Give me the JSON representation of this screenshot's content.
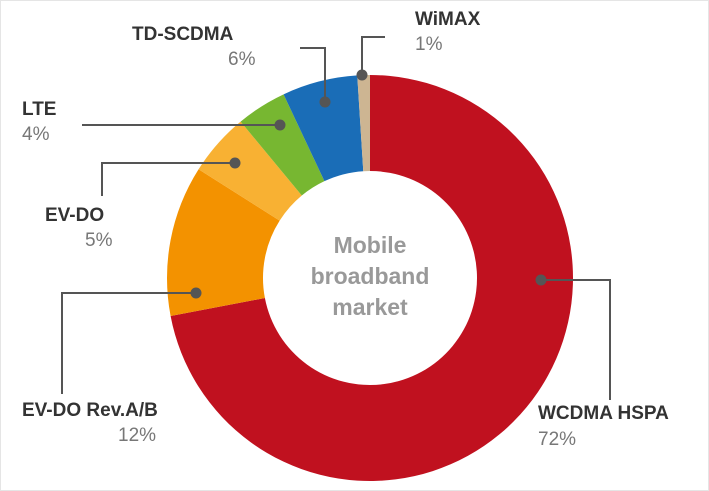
{
  "chart_data": {
    "type": "donut",
    "center_label": "Mobile broadband market",
    "categories": [
      "WCDMA HSPA",
      "EV-DO Rev.A/B",
      "EV-DO",
      "LTE",
      "TD-SCDMA",
      "WiMAX"
    ],
    "values": [
      72,
      12,
      5,
      4,
      6,
      1
    ],
    "value_labels": [
      "72%",
      "12%",
      "5%",
      "4%",
      "6%",
      "1%"
    ],
    "colors": [
      "#c0111f",
      "#f39200",
      "#f8b133",
      "#77b731",
      "#1a6db7",
      "#cdb592"
    ]
  }
}
